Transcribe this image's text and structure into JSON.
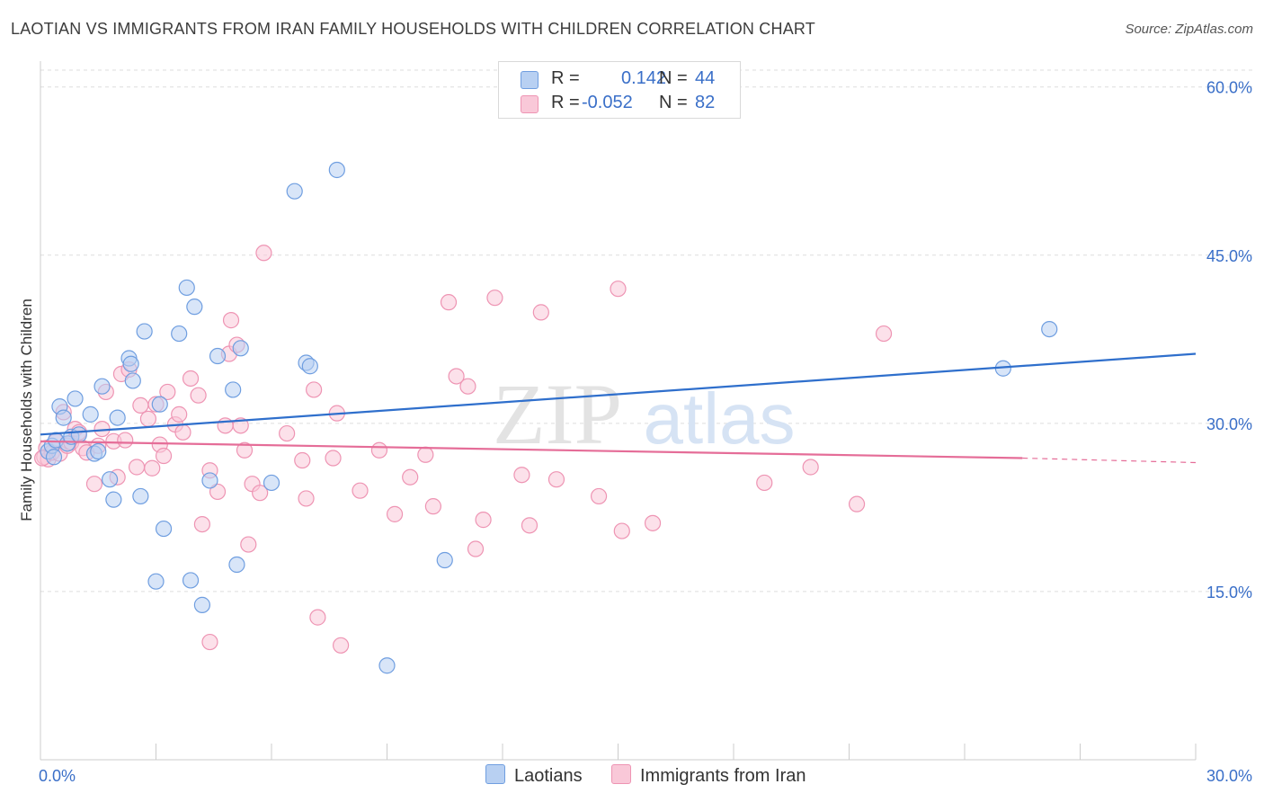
{
  "title": "LAOTIAN VS IMMIGRANTS FROM IRAN FAMILY HOUSEHOLDS WITH CHILDREN CORRELATION CHART",
  "source": "Source: ZipAtlas.com",
  "watermark": {
    "zip": "ZIP",
    "atlas": "atlas"
  },
  "legend": {
    "r_label": "R =",
    "n_label": "N =",
    "rows": [
      {
        "r": "0.142",
        "n": "44"
      },
      {
        "r": "-0.052",
        "n": "82"
      }
    ]
  },
  "bottom_legend": [
    "Laotians",
    "Immigrants from Iran"
  ],
  "colors": {
    "blue_fill": "#b8d0f2",
    "blue_stroke": "#6f9ee0",
    "blue_line": "#2f6fcc",
    "pink_fill": "#f9c8d8",
    "pink_stroke": "#ee94b3",
    "pink_line": "#e56d98",
    "tick_text": "#3a6fc8",
    "grid": "#dddddd"
  },
  "chart_data": {
    "type": "scatter",
    "title": "LAOTIAN VS IMMIGRANTS FROM IRAN FAMILY HOUSEHOLDS WITH CHILDREN CORRELATION CHART",
    "xlabel": "",
    "ylabel": "Family Households with Children",
    "xlim": [
      0,
      30
    ],
    "ylim": [
      0,
      61.5
    ],
    "x_tick_labels": [
      "0.0%",
      "30.0%"
    ],
    "y_ticks": [
      15,
      30,
      45,
      60
    ],
    "y_tick_labels": [
      "15.0%",
      "30.0%",
      "45.0%",
      "60.0%"
    ],
    "series": [
      {
        "name": "Laotians",
        "r": 0.142,
        "n": 44,
        "trend": {
          "x0": 0,
          "y0": 29.0,
          "x1": 30,
          "y1": 36.2
        },
        "points": [
          [
            0.2,
            27.5
          ],
          [
            0.3,
            28.0
          ],
          [
            0.35,
            27.0
          ],
          [
            0.4,
            28.5
          ],
          [
            0.5,
            31.5
          ],
          [
            0.6,
            30.5
          ],
          [
            0.7,
            28.2
          ],
          [
            0.8,
            28.8
          ],
          [
            0.9,
            32.2
          ],
          [
            1.0,
            29.0
          ],
          [
            1.3,
            30.8
          ],
          [
            1.4,
            27.3
          ],
          [
            1.5,
            27.5
          ],
          [
            1.6,
            33.3
          ],
          [
            1.8,
            25.0
          ],
          [
            1.9,
            23.2
          ],
          [
            2.0,
            30.5
          ],
          [
            2.3,
            35.8
          ],
          [
            2.35,
            35.3
          ],
          [
            2.4,
            33.8
          ],
          [
            2.6,
            23.5
          ],
          [
            2.7,
            38.2
          ],
          [
            3.0,
            15.9
          ],
          [
            3.1,
            31.7
          ],
          [
            3.2,
            20.6
          ],
          [
            3.6,
            38.0
          ],
          [
            3.8,
            42.1
          ],
          [
            3.9,
            16.0
          ],
          [
            4.0,
            40.4
          ],
          [
            4.2,
            13.8
          ],
          [
            4.4,
            24.9
          ],
          [
            4.6,
            36.0
          ],
          [
            5.1,
            17.4
          ],
          [
            5.2,
            36.7
          ],
          [
            5.0,
            33.0
          ],
          [
            6.0,
            24.7
          ],
          [
            6.6,
            50.7
          ],
          [
            6.9,
            35.4
          ],
          [
            7.0,
            35.1
          ],
          [
            7.7,
            52.6
          ],
          [
            9.0,
            8.4
          ],
          [
            10.5,
            17.8
          ],
          [
            25.0,
            34.9
          ],
          [
            26.2,
            38.4
          ]
        ]
      },
      {
        "name": "Immigrants from Iran",
        "r": -0.052,
        "n": 82,
        "trend": {
          "x0": 0,
          "y0": 28.4,
          "x1": 25.5,
          "y1": 26.9,
          "dashed_to_x": 30,
          "dashed_to_y": 26.5
        },
        "points": [
          [
            0.1,
            27.0
          ],
          [
            0.15,
            27.8
          ],
          [
            0.2,
            26.8
          ],
          [
            0.3,
            27.4
          ],
          [
            0.4,
            28.4
          ],
          [
            0.5,
            27.3
          ],
          [
            0.6,
            31.0
          ],
          [
            0.7,
            28.0
          ],
          [
            0.8,
            28.3
          ],
          [
            0.9,
            29.5
          ],
          [
            1.0,
            29.2
          ],
          [
            1.1,
            27.8
          ],
          [
            1.2,
            27.4
          ],
          [
            1.4,
            24.6
          ],
          [
            1.5,
            28.0
          ],
          [
            1.6,
            29.5
          ],
          [
            1.7,
            32.8
          ],
          [
            1.9,
            28.4
          ],
          [
            2.0,
            25.2
          ],
          [
            2.1,
            34.4
          ],
          [
            2.2,
            28.5
          ],
          [
            2.3,
            34.8
          ],
          [
            2.5,
            26.1
          ],
          [
            2.6,
            31.6
          ],
          [
            2.8,
            30.4
          ],
          [
            2.9,
            26.0
          ],
          [
            3.0,
            31.7
          ],
          [
            3.1,
            28.1
          ],
          [
            3.2,
            27.1
          ],
          [
            3.3,
            32.8
          ],
          [
            3.5,
            29.9
          ],
          [
            3.6,
            30.8
          ],
          [
            3.7,
            29.2
          ],
          [
            3.9,
            34.0
          ],
          [
            4.1,
            32.5
          ],
          [
            4.2,
            21.0
          ],
          [
            4.4,
            25.8
          ],
          [
            4.4,
            10.5
          ],
          [
            4.6,
            23.9
          ],
          [
            4.8,
            29.8
          ],
          [
            4.9,
            36.2
          ],
          [
            4.95,
            39.2
          ],
          [
            5.1,
            37.0
          ],
          [
            5.2,
            29.8
          ],
          [
            5.3,
            27.6
          ],
          [
            5.4,
            19.2
          ],
          [
            5.5,
            24.6
          ],
          [
            5.7,
            23.8
          ],
          [
            5.8,
            45.2
          ],
          [
            6.4,
            29.1
          ],
          [
            6.8,
            26.7
          ],
          [
            6.9,
            23.3
          ],
          [
            7.1,
            33.0
          ],
          [
            7.2,
            12.7
          ],
          [
            7.6,
            26.9
          ],
          [
            7.7,
            30.9
          ],
          [
            7.8,
            10.2
          ],
          [
            8.3,
            24.0
          ],
          [
            8.8,
            27.6
          ],
          [
            9.2,
            21.9
          ],
          [
            9.6,
            25.2
          ],
          [
            10.0,
            27.2
          ],
          [
            10.2,
            22.6
          ],
          [
            10.6,
            40.8
          ],
          [
            10.8,
            34.2
          ],
          [
            11.1,
            33.3
          ],
          [
            11.3,
            18.8
          ],
          [
            11.5,
            21.4
          ],
          [
            11.8,
            41.2
          ],
          [
            12.5,
            25.4
          ],
          [
            12.7,
            20.9
          ],
          [
            13.0,
            39.9
          ],
          [
            13.4,
            25.0
          ],
          [
            14.5,
            23.5
          ],
          [
            15.0,
            42.0
          ],
          [
            15.1,
            20.4
          ],
          [
            15.9,
            21.1
          ],
          [
            18.8,
            24.7
          ],
          [
            20.0,
            26.1
          ],
          [
            21.2,
            22.8
          ],
          [
            21.9,
            38.0
          ],
          [
            0.05,
            26.9
          ]
        ]
      }
    ]
  }
}
